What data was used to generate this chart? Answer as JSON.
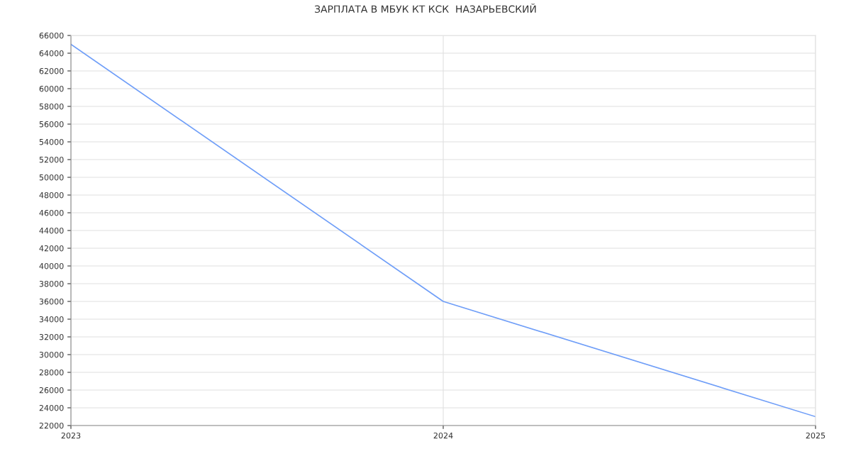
{
  "chart_data": {
    "type": "line",
    "title": "ЗАРПЛАТА В МБУК КТ КСК  НАЗАРЬЕВСКИЙ",
    "x": [
      2023,
      2024,
      2025
    ],
    "series": [
      {
        "color": "#6f9ef8",
        "values": [
          65000,
          36000,
          23000
        ]
      }
    ],
    "xlim": [
      2023,
      2025
    ],
    "xticks": [
      2023,
      2024,
      2025
    ],
    "ylim": [
      22000,
      66000
    ],
    "yticks": [
      22000,
      24000,
      26000,
      28000,
      30000,
      32000,
      34000,
      36000,
      38000,
      40000,
      42000,
      44000,
      46000,
      48000,
      50000,
      52000,
      54000,
      56000,
      58000,
      60000,
      62000,
      64000,
      66000
    ],
    "grid": true,
    "legend": false,
    "marker": "none",
    "line_style": "solid"
  }
}
